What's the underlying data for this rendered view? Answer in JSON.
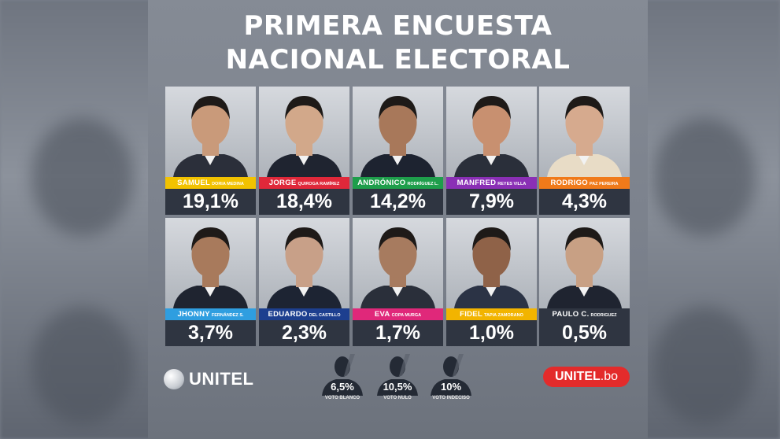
{
  "title_line1": "PRIMERA ENCUESTA",
  "title_line2": "NACIONAL ELECTORAL",
  "brand": {
    "logo_text": "UNITEL",
    "site_name": "UNITEL",
    "site_tld": ".bo"
  },
  "chart_data": {
    "type": "bar",
    "title": "PRIMERA ENCUESTA NACIONAL ELECTORAL",
    "categories": [
      "SAMUEL DORIA MEDINA",
      "JORGE QUIROGA RAMÍREZ",
      "ANDRÓNICO RODRÍGUEZ L.",
      "MANFRED REYES VILLA",
      "RODRIGO PAZ PEREIRA",
      "JHONNY FERNÁNDEZ S.",
      "EDUARDO DEL CASTILLO",
      "EVA COPA MURGA",
      "FIDEL TAPIA ZAMORANO",
      "PAULO C. RODRIGUEZ"
    ],
    "values": [
      19.1,
      18.4,
      14.2,
      7.9,
      4.3,
      3.7,
      2.3,
      1.7,
      1.0,
      0.5
    ],
    "candidates": [
      {
        "first": "SAMUEL",
        "last": "DORIA MEDINA",
        "pct": "19,1%",
        "color": "#f2c200"
      },
      {
        "first": "JORGE",
        "last": "QUIROGA RAMÍREZ",
        "pct": "18,4%",
        "color": "#e0283a"
      },
      {
        "first": "ANDRÓNICO",
        "last": "RODRÍGUEZ L.",
        "pct": "14,2%",
        "color": "#1e9e4b"
      },
      {
        "first": "MANFRED",
        "last": "REYES VILLA",
        "pct": "7,9%",
        "color": "#8a2fb5"
      },
      {
        "first": "RODRIGO",
        "last": "PAZ PEREIRA",
        "pct": "4,3%",
        "color": "#f07a1a"
      },
      {
        "first": "JHONNY",
        "last": "FERNÁNDEZ S.",
        "pct": "3,7%",
        "color": "#2f9ee0"
      },
      {
        "first": "EDUARDO",
        "last": "DEL CASTILLO",
        "pct": "2,3%",
        "color": "#1d3f8f"
      },
      {
        "first": "EVA",
        "last": "COPA MURGA",
        "pct": "1,7%",
        "color": "#e0287a"
      },
      {
        "first": "FIDEL",
        "last": "TAPIA ZAMORANO",
        "pct": "1,0%",
        "color": "#f2b400"
      },
      {
        "first": "PAULO C.",
        "last": "RODRIGUEZ",
        "pct": "0,5%",
        "color": "#2f3541"
      }
    ],
    "other_votes": [
      {
        "pct": "6,5%",
        "label": "VOTO BLANCO",
        "value": 6.5
      },
      {
        "pct": "10,5%",
        "label": "VOTO NULO",
        "value": 10.5
      },
      {
        "pct": "10%",
        "label": "VOTO INDECISO",
        "value": 10
      }
    ]
  }
}
